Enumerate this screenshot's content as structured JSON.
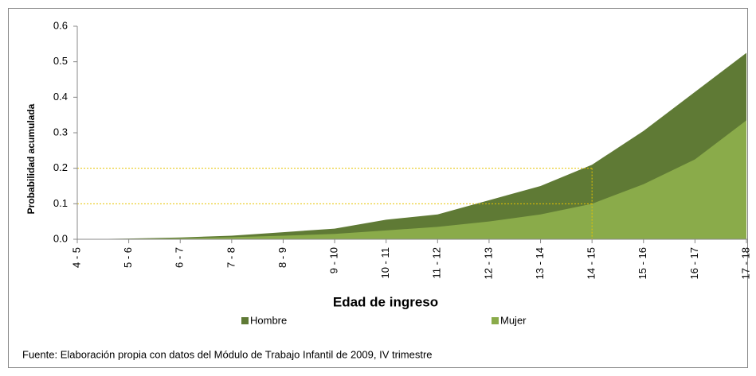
{
  "chart_data": {
    "type": "area",
    "x_label": "Edad de ingreso",
    "y_label": "Probabilidad acumulada",
    "source": "Fuente: Elaboración propia con datos del Módulo de Trabajo Infantil  de 2009, IV trimestre",
    "categories": [
      "4 - 5",
      "5 - 6",
      "6 - 7",
      "7 - 8",
      "8 - 9",
      "9 - 10",
      "10 - 11",
      "11 - 12",
      "12 - 13",
      "13 - 14",
      "14 - 15",
      "15 - 16",
      "16 - 17",
      "17 - 18"
    ],
    "series": [
      {
        "name": "Hombre",
        "color": "#5f7a35",
        "values": [
          0,
          0.002,
          0.005,
          0.01,
          0.02,
          0.03,
          0.055,
          0.07,
          0.11,
          0.15,
          0.21,
          0.305,
          0.415,
          0.525
        ]
      },
      {
        "name": "Mujer",
        "color": "#8aab4a",
        "values": [
          0,
          0.001,
          0.003,
          0.006,
          0.01,
          0.015,
          0.025,
          0.035,
          0.05,
          0.07,
          0.1,
          0.155,
          0.225,
          0.335
        ]
      }
    ],
    "reference_lines": {
      "x": "14 - 15",
      "y": [
        0.2,
        0.1
      ],
      "color": "#e8c400"
    },
    "ylim": [
      0,
      0.6
    ],
    "yticks": [
      {
        "value": 0,
        "label": "0.0"
      },
      0.1,
      0.2,
      0.3,
      0.4,
      0.5,
      0.6
    ]
  }
}
